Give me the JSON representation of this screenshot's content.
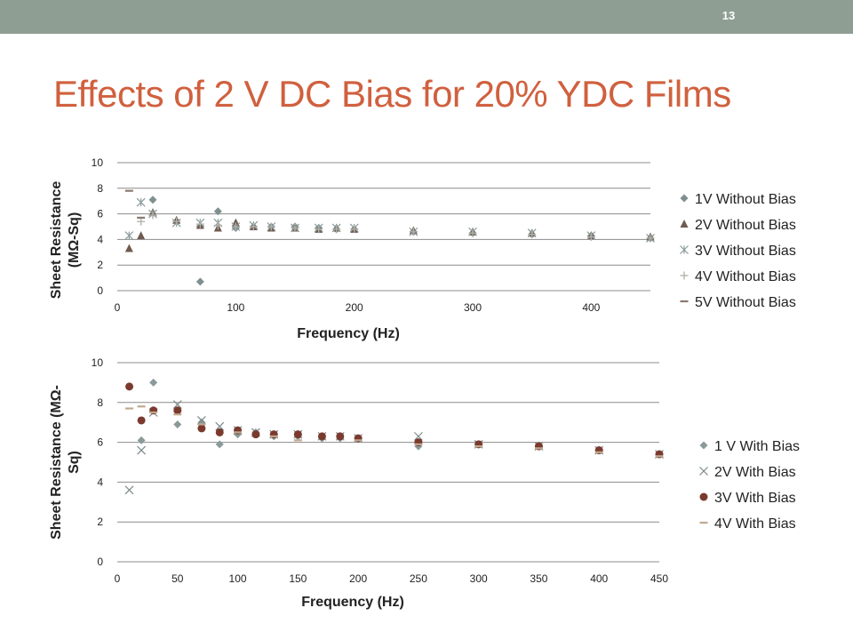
{
  "slide": {
    "number": "13",
    "title": "Effects of 2 V DC Bias for 20% YDC Films"
  },
  "colors": {
    "title": "#d0603e",
    "topbar": "#8e9e92"
  },
  "chart_data": [
    {
      "type": "scatter",
      "xlabel": "Frequency (Hz)",
      "ylabel_lines": [
        "Sheet Resistance",
        "(MΩ-Sq)"
      ],
      "xlim": [
        0,
        450
      ],
      "ylim": [
        0,
        10
      ],
      "xticks": [
        0,
        100,
        200,
        300,
        400
      ],
      "yticks": [
        0,
        2,
        4,
        6,
        8,
        10
      ],
      "grid": "horizontal",
      "legend_position": "right",
      "series": [
        {
          "name": "1V Without Bias",
          "marker": "diamond",
          "color": "#7f8f8f",
          "points": [
            [
              30,
              7.1
            ],
            [
              50,
              5.4
            ],
            [
              70,
              0.7
            ],
            [
              85,
              6.2
            ],
            [
              100,
              4.9
            ],
            [
              115,
              5.0
            ],
            [
              130,
              5.0
            ],
            [
              150,
              5.0
            ],
            [
              170,
              4.9
            ],
            [
              185,
              4.8
            ],
            [
              200,
              4.8
            ],
            [
              250,
              4.6
            ],
            [
              300,
              4.5
            ],
            [
              350,
              4.4
            ],
            [
              400,
              4.3
            ],
            [
              450,
              4.1
            ]
          ]
        },
        {
          "name": "2V Without Bias",
          "marker": "triangle",
          "color": "#6f5a50",
          "points": [
            [
              10,
              3.3
            ],
            [
              20,
              4.3
            ],
            [
              30,
              6.1
            ],
            [
              50,
              5.5
            ],
            [
              70,
              5.1
            ],
            [
              85,
              4.9
            ],
            [
              100,
              5.3
            ],
            [
              115,
              5.0
            ],
            [
              130,
              4.9
            ],
            [
              150,
              4.9
            ],
            [
              170,
              4.8
            ],
            [
              185,
              4.9
            ],
            [
              200,
              4.8
            ],
            [
              250,
              4.7
            ],
            [
              300,
              4.6
            ],
            [
              350,
              4.5
            ],
            [
              400,
              4.3
            ],
            [
              450,
              4.2
            ]
          ]
        },
        {
          "name": "3V Without Bias",
          "marker": "star",
          "color": "#8a9a9a",
          "points": [
            [
              10,
              4.3
            ],
            [
              20,
              6.9
            ],
            [
              30,
              6.0
            ],
            [
              50,
              5.3
            ],
            [
              70,
              5.3
            ],
            [
              85,
              5.3
            ],
            [
              100,
              5.0
            ],
            [
              115,
              5.1
            ],
            [
              130,
              5.0
            ],
            [
              150,
              4.9
            ],
            [
              170,
              4.9
            ],
            [
              185,
              4.9
            ],
            [
              200,
              4.9
            ],
            [
              250,
              4.6
            ],
            [
              300,
              4.6
            ],
            [
              350,
              4.5
            ],
            [
              400,
              4.3
            ],
            [
              450,
              4.1
            ]
          ]
        },
        {
          "name": "4V Without Bias",
          "marker": "plus",
          "color": "#b0b0a8",
          "points": [
            [
              20,
              5.4
            ],
            [
              30,
              5.9
            ],
            [
              50,
              5.4
            ],
            [
              70,
              5.2
            ],
            [
              85,
              5.1
            ],
            [
              100,
              5.0
            ],
            [
              115,
              5.0
            ],
            [
              130,
              5.0
            ],
            [
              150,
              4.9
            ],
            [
              170,
              4.8
            ],
            [
              185,
              4.8
            ],
            [
              200,
              4.8
            ],
            [
              250,
              4.6
            ],
            [
              300,
              4.5
            ],
            [
              350,
              4.4
            ],
            [
              400,
              4.2
            ],
            [
              450,
              4.1
            ]
          ]
        },
        {
          "name": "5V Without Bias",
          "marker": "dash",
          "color": "#8a7a70",
          "points": [
            [
              10,
              7.8
            ],
            [
              20,
              5.7
            ]
          ]
        }
      ]
    },
    {
      "type": "scatter",
      "xlabel": "Frequency (Hz)",
      "ylabel_lines": [
        "Sheet Resistance (MΩ-",
        "Sq)"
      ],
      "xlim": [
        0,
        450
      ],
      "ylim": [
        0,
        10
      ],
      "xticks": [
        0,
        50,
        100,
        150,
        200,
        250,
        300,
        350,
        400,
        450
      ],
      "yticks": [
        0,
        2,
        4,
        6,
        8,
        10
      ],
      "grid": "horizontal",
      "legend_position": "right",
      "series": [
        {
          "name": "1 V With Bias",
          "marker": "diamond",
          "color": "#8a9a9a",
          "points": [
            [
              20,
              6.1
            ],
            [
              30,
              9.0
            ],
            [
              50,
              6.9
            ],
            [
              70,
              7.0
            ],
            [
              85,
              5.9
            ],
            [
              100,
              6.4
            ],
            [
              115,
              6.5
            ],
            [
              130,
              6.3
            ],
            [
              150,
              6.3
            ],
            [
              170,
              6.2
            ],
            [
              185,
              6.2
            ],
            [
              200,
              6.2
            ],
            [
              250,
              5.8
            ],
            [
              300,
              5.9
            ],
            [
              350,
              5.8
            ],
            [
              400,
              5.6
            ],
            [
              450,
              5.4
            ]
          ]
        },
        {
          "name": "2V With Bias",
          "marker": "x",
          "color": "#7a8a8a",
          "points": [
            [
              10,
              3.6
            ],
            [
              20,
              5.6
            ],
            [
              30,
              7.5
            ],
            [
              50,
              7.9
            ],
            [
              70,
              7.1
            ],
            [
              85,
              6.8
            ],
            [
              100,
              6.6
            ],
            [
              115,
              6.5
            ],
            [
              130,
              6.4
            ],
            [
              150,
              6.4
            ],
            [
              170,
              6.3
            ],
            [
              185,
              6.3
            ],
            [
              200,
              6.2
            ],
            [
              250,
              6.3
            ],
            [
              300,
              5.9
            ],
            [
              350,
              5.8
            ],
            [
              400,
              5.6
            ],
            [
              450,
              5.4
            ]
          ]
        },
        {
          "name": "3V With Bias",
          "marker": "circle",
          "color": "#7a3a2e",
          "points": [
            [
              10,
              8.8
            ],
            [
              20,
              7.1
            ],
            [
              30,
              7.6
            ],
            [
              50,
              7.6
            ],
            [
              70,
              6.7
            ],
            [
              85,
              6.5
            ],
            [
              100,
              6.6
            ],
            [
              115,
              6.4
            ],
            [
              130,
              6.4
            ],
            [
              150,
              6.4
            ],
            [
              170,
              6.3
            ],
            [
              185,
              6.3
            ],
            [
              200,
              6.2
            ],
            [
              250,
              6.0
            ],
            [
              300,
              5.9
            ],
            [
              350,
              5.8
            ],
            [
              400,
              5.6
            ],
            [
              450,
              5.4
            ]
          ]
        },
        {
          "name": "4V With Bias",
          "marker": "dash",
          "color": "#c0a890",
          "points": [
            [
              10,
              7.7
            ],
            [
              20,
              7.8
            ],
            [
              30,
              7.5
            ],
            [
              50,
              7.4
            ],
            [
              70,
              6.9
            ],
            [
              100,
              6.5
            ],
            [
              130,
              6.3
            ],
            [
              150,
              6.1
            ],
            [
              200,
              6.1
            ],
            [
              250,
              5.9
            ],
            [
              300,
              5.8
            ],
            [
              350,
              5.7
            ],
            [
              400,
              5.5
            ],
            [
              450,
              5.3
            ]
          ]
        }
      ]
    }
  ]
}
